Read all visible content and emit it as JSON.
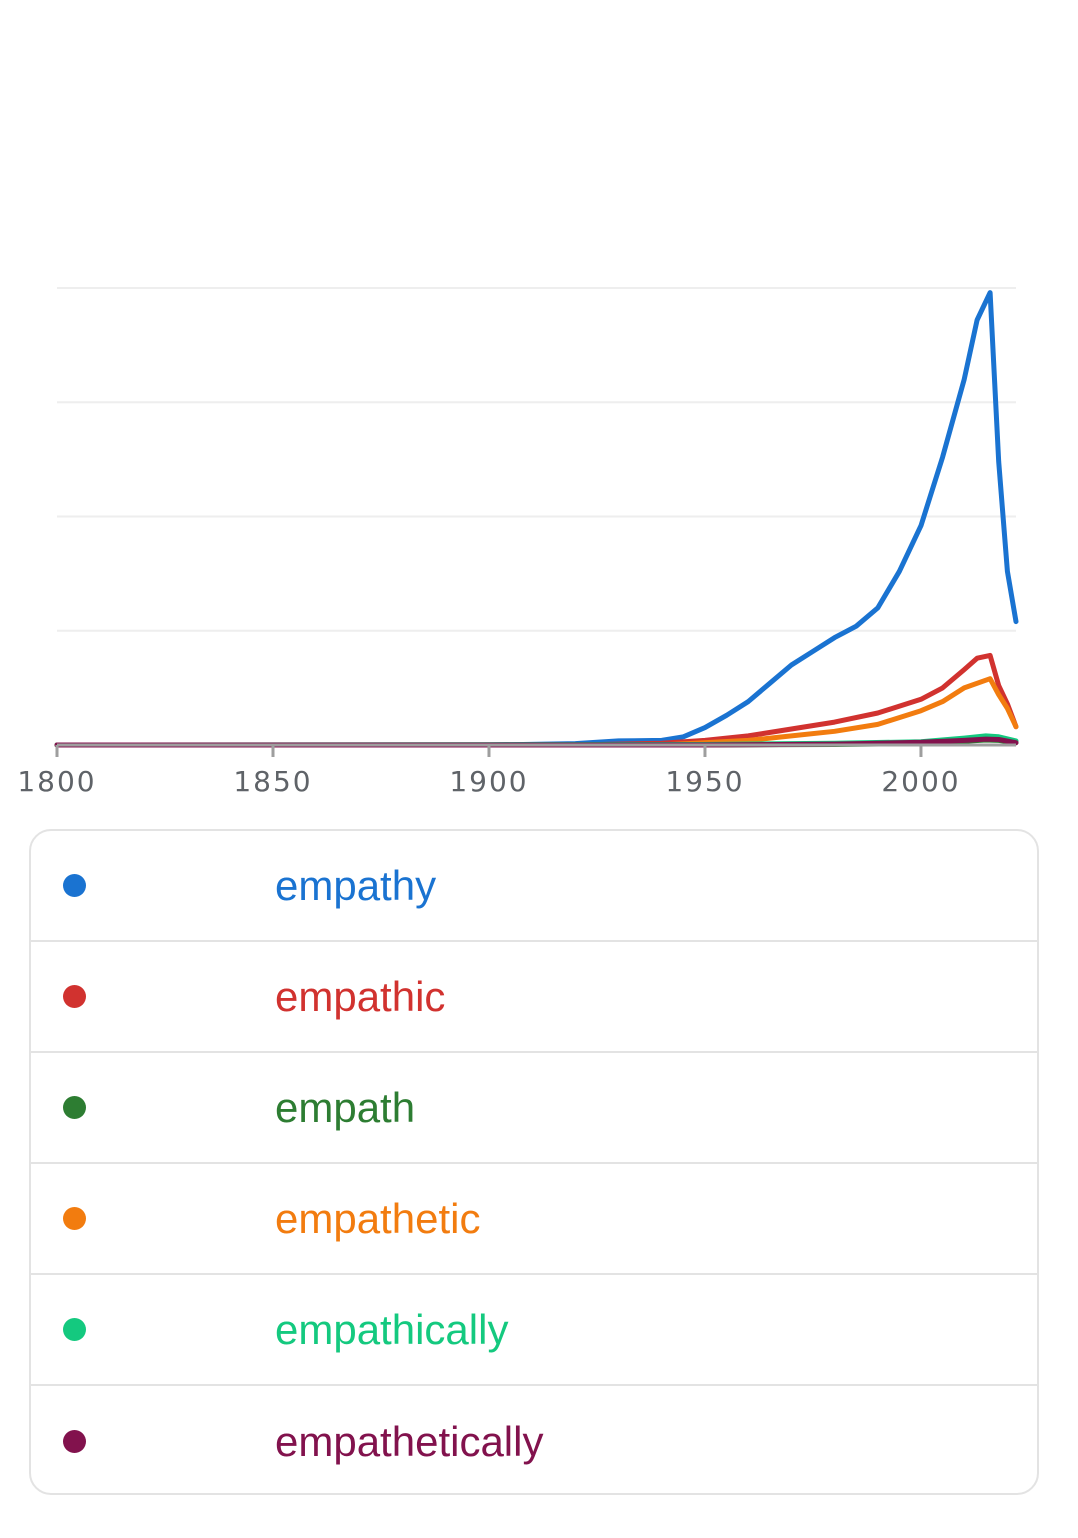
{
  "chart_data": {
    "type": "line",
    "title": "",
    "xlabel": "",
    "ylabel": "",
    "xlim": [
      1800,
      2022
    ],
    "ylim": [
      0,
      1
    ],
    "x_ticks": [
      1800,
      1850,
      1900,
      1950,
      2000
    ],
    "y_gridlines": 4,
    "grid": true,
    "legend_position": "bottom",
    "series": [
      {
        "name": "empathy",
        "color": "#1a73d1",
        "points": [
          [
            1800,
            0
          ],
          [
            1900,
            0
          ],
          [
            1920,
            0.003
          ],
          [
            1930,
            0.009
          ],
          [
            1940,
            0.01
          ],
          [
            1945,
            0.018
          ],
          [
            1950,
            0.038
          ],
          [
            1955,
            0.065
          ],
          [
            1960,
            0.095
          ],
          [
            1965,
            0.135
          ],
          [
            1970,
            0.175
          ],
          [
            1975,
            0.205
          ],
          [
            1980,
            0.235
          ],
          [
            1985,
            0.26
          ],
          [
            1990,
            0.3
          ],
          [
            1995,
            0.38
          ],
          [
            2000,
            0.48
          ],
          [
            2005,
            0.63
          ],
          [
            2010,
            0.8
          ],
          [
            2013,
            0.93
          ],
          [
            2016,
            0.99
          ],
          [
            2018,
            0.62
          ],
          [
            2020,
            0.38
          ],
          [
            2022,
            0.27
          ]
        ]
      },
      {
        "name": "empathic",
        "color": "#d1322f",
        "points": [
          [
            1800,
            0
          ],
          [
            1920,
            0
          ],
          [
            1940,
            0.004
          ],
          [
            1950,
            0.01
          ],
          [
            1960,
            0.02
          ],
          [
            1970,
            0.035
          ],
          [
            1980,
            0.05
          ],
          [
            1990,
            0.07
          ],
          [
            2000,
            0.1
          ],
          [
            2005,
            0.125
          ],
          [
            2010,
            0.165
          ],
          [
            2013,
            0.19
          ],
          [
            2016,
            0.196
          ],
          [
            2018,
            0.13
          ],
          [
            2020,
            0.09
          ],
          [
            2022,
            0.04
          ]
        ]
      },
      {
        "name": "empath",
        "color": "#2d7d32",
        "points": [
          [
            1800,
            0
          ],
          [
            1950,
            0
          ],
          [
            1980,
            0.001
          ],
          [
            2000,
            0.003
          ],
          [
            2010,
            0.008
          ],
          [
            2015,
            0.011
          ],
          [
            2018,
            0.01
          ],
          [
            2022,
            0.005
          ]
        ]
      },
      {
        "name": "empathetic",
        "color": "#f27c0f",
        "points": [
          [
            1800,
            0
          ],
          [
            1940,
            0
          ],
          [
            1960,
            0.01
          ],
          [
            1970,
            0.02
          ],
          [
            1980,
            0.03
          ],
          [
            1990,
            0.045
          ],
          [
            2000,
            0.075
          ],
          [
            2005,
            0.095
          ],
          [
            2010,
            0.125
          ],
          [
            2016,
            0.145
          ],
          [
            2018,
            0.11
          ],
          [
            2020,
            0.08
          ],
          [
            2022,
            0.04
          ]
        ]
      },
      {
        "name": "empathically",
        "color": "#14c97f",
        "points": [
          [
            1800,
            0
          ],
          [
            1950,
            0.001
          ],
          [
            1980,
            0.004
          ],
          [
            2000,
            0.007
          ],
          [
            2010,
            0.015
          ],
          [
            2015,
            0.02
          ],
          [
            2018,
            0.018
          ],
          [
            2022,
            0.009
          ]
        ]
      },
      {
        "name": "empathetically",
        "color": "#82124d",
        "points": [
          [
            1800,
            0
          ],
          [
            1950,
            0
          ],
          [
            1980,
            0.002
          ],
          [
            2000,
            0.006
          ],
          [
            2010,
            0.01
          ],
          [
            2015,
            0.013
          ],
          [
            2018,
            0.012
          ],
          [
            2022,
            0.005
          ]
        ]
      }
    ]
  },
  "legend": {
    "items": [
      {
        "label": "empathy",
        "color": "#1a73d1"
      },
      {
        "label": "empathic",
        "color": "#d1322f"
      },
      {
        "label": "empath",
        "color": "#2d7d32"
      },
      {
        "label": "empathetic",
        "color": "#f27c0f"
      },
      {
        "label": "empathically",
        "color": "#14c97f"
      },
      {
        "label": "empathetically",
        "color": "#82124d"
      }
    ]
  }
}
